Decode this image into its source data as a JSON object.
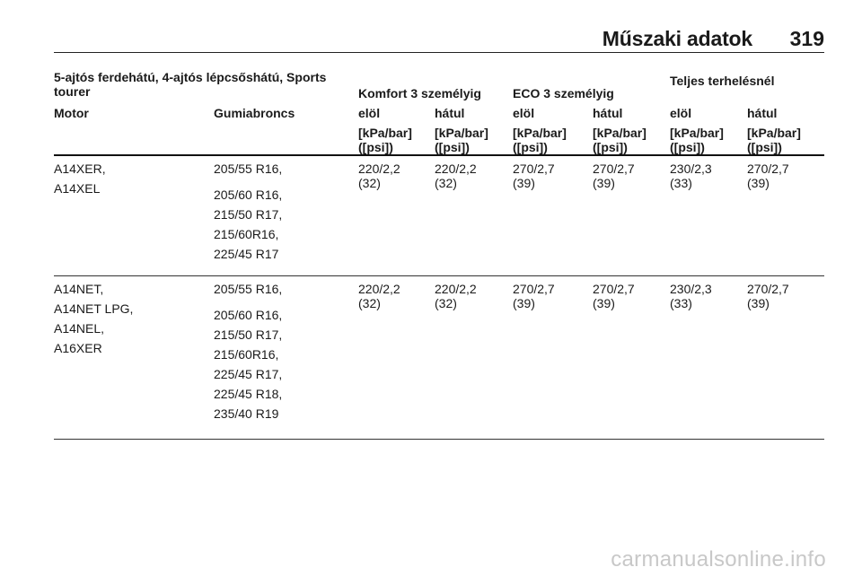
{
  "header": {
    "section_title": "Műszaki adatok",
    "page_number": "319"
  },
  "table": {
    "vehicle_label_line1": "5-ajtós ferdehátú, 4-ajtós lépcsőshátú, Sports",
    "vehicle_label_line2": "tourer",
    "group_komfort": "Komfort 3 személyig",
    "group_eco": "ECO 3 személyig",
    "group_full": "Teljes terhelésnél",
    "col_motor": "Motor",
    "col_tyres": "Gumiabroncs",
    "col_front": "elöl",
    "col_rear": "hátul",
    "unit_line1": "[kPa/bar]",
    "unit_line2": "([psi])",
    "rows": [
      {
        "motors": [
          "A14XER,",
          "A14XEL"
        ],
        "tyre_first": "205/55 R16,",
        "tyres": [
          "205/60 R16,",
          "215/50 R17,",
          "215/60R16,",
          "225/45 R17"
        ],
        "pressures": [
          {
            "kpa": "220/2,2",
            "psi": "(32)"
          },
          {
            "kpa": "220/2,2",
            "psi": "(32)"
          },
          {
            "kpa": "270/2,7",
            "psi": "(39)"
          },
          {
            "kpa": "270/2,7",
            "psi": "(39)"
          },
          {
            "kpa": "230/2,3",
            "psi": "(33)"
          },
          {
            "kpa": "270/2,7",
            "psi": "(39)"
          }
        ]
      },
      {
        "motors": [
          "A14NET,",
          "A14NET LPG,",
          "A14NEL,",
          "A16XER"
        ],
        "tyre_first": "205/55 R16,",
        "tyres": [
          "205/60 R16,",
          "215/50 R17,",
          "215/60R16,",
          "225/45 R17,",
          "225/45 R18,",
          "235/40 R19"
        ],
        "pressures": [
          {
            "kpa": "220/2,2",
            "psi": "(32)"
          },
          {
            "kpa": "220/2,2",
            "psi": "(32)"
          },
          {
            "kpa": "270/2,7",
            "psi": "(39)"
          },
          {
            "kpa": "270/2,7",
            "psi": "(39)"
          },
          {
            "kpa": "230/2,3",
            "psi": "(33)"
          },
          {
            "kpa": "270/2,7",
            "psi": "(39)"
          }
        ]
      }
    ]
  },
  "watermark": "carmanualsonline.info"
}
